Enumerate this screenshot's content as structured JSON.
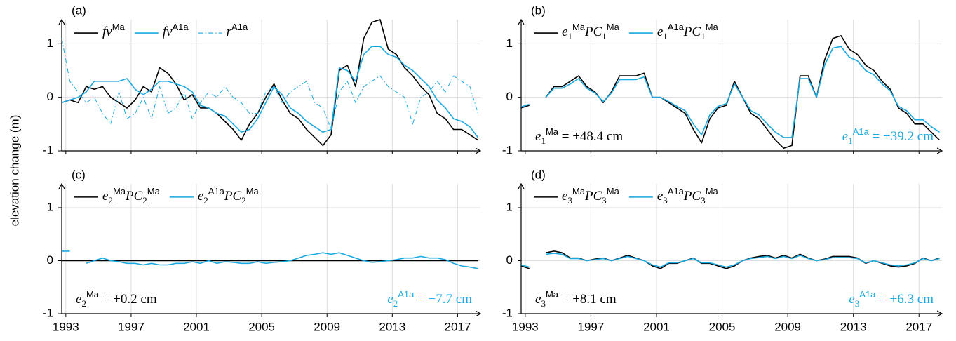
{
  "ylabel": "elevation change (m)",
  "chart_data": [
    {
      "type": "line",
      "title": "(a)",
      "xlim": [
        1992.75,
        2018.4
      ],
      "ylim": [
        -1,
        1.45
      ],
      "xticks": [
        1993,
        1997,
        2001,
        2005,
        2009,
        2013,
        2017
      ],
      "xtick_labels": false,
      "yticks": [
        -1,
        0,
        1
      ],
      "grid": true,
      "legend": "top-left",
      "x": [
        1992.75,
        1993.25,
        1993.75,
        1994.25,
        1994.75,
        1995.25,
        1995.75,
        1996.25,
        1996.75,
        1997.25,
        1997.75,
        1998.25,
        1998.75,
        1999.25,
        1999.75,
        2000.25,
        2000.75,
        2001.25,
        2001.75,
        2002.25,
        2002.75,
        2003.25,
        2003.75,
        2004.25,
        2004.75,
        2005.25,
        2005.75,
        2006.25,
        2006.75,
        2007.25,
        2007.75,
        2008.25,
        2008.75,
        2009.25,
        2009.75,
        2010.25,
        2010.75,
        2011.25,
        2011.75,
        2012.25,
        2012.75,
        2013.25,
        2013.75,
        2014.25,
        2014.75,
        2015.25,
        2015.75,
        2016.25,
        2016.75,
        2017.25,
        2017.75,
        2018.25
      ],
      "series": [
        {
          "name": "fv^{Ma}",
          "color": "#000000",
          "dash": "solid",
          "values": [
            -0.1,
            -0.05,
            -0.1,
            0.2,
            0.15,
            0.2,
            0.0,
            -0.1,
            -0.2,
            -0.05,
            0.2,
            0.1,
            0.55,
            0.45,
            0.25,
            -0.05,
            0.05,
            -0.2,
            -0.2,
            -0.3,
            -0.45,
            -0.6,
            -0.8,
            -0.5,
            -0.3,
            0.0,
            0.25,
            -0.05,
            -0.3,
            -0.4,
            -0.6,
            -0.75,
            -0.9,
            -0.7,
            0.5,
            0.6,
            0.2,
            1.1,
            1.4,
            1.45,
            0.9,
            0.8,
            0.55,
            0.4,
            0.2,
            0.05,
            -0.3,
            -0.4,
            -0.6,
            -0.6,
            -0.7,
            -0.8
          ]
        },
        {
          "name": "fv^{A1a}",
          "color": "#1ba9e1",
          "dash": "solid",
          "values": [
            -0.1,
            -0.05,
            0.0,
            0.1,
            0.3,
            0.3,
            0.3,
            0.3,
            0.35,
            0.15,
            0.05,
            0.15,
            0.3,
            0.3,
            0.25,
            0.2,
            0.1,
            -0.15,
            -0.2,
            -0.3,
            -0.35,
            -0.5,
            -0.65,
            -0.6,
            -0.4,
            -0.1,
            0.2,
            0.05,
            -0.2,
            -0.3,
            -0.45,
            -0.55,
            -0.65,
            -0.6,
            0.55,
            0.5,
            0.3,
            0.8,
            0.95,
            0.95,
            0.8,
            0.75,
            0.6,
            0.5,
            0.35,
            0.2,
            -0.05,
            -0.2,
            -0.4,
            -0.45,
            -0.55,
            -0.75
          ]
        },
        {
          "name": "r^{A1a}",
          "color": "#1ba9e1",
          "dash": "dashdot",
          "values": [
            1.1,
            0.3,
            0.1,
            -0.1,
            0.0,
            -0.3,
            -0.5,
            0.1,
            -0.4,
            -0.3,
            0.0,
            -0.4,
            0.2,
            -0.3,
            -0.2,
            0.1,
            -0.4,
            -0.1,
            0.1,
            0.0,
            0.2,
            0.0,
            -0.1,
            -0.3,
            -0.3,
            0.1,
            0.2,
            -0.1,
            0.1,
            0.2,
            0.3,
            -0.1,
            -0.2,
            -0.6,
            0.1,
            0.3,
            -0.1,
            0.2,
            0.3,
            0.4,
            0.2,
            0.1,
            0.0,
            -0.5,
            0.0,
            0.1,
            0.3,
            0.1,
            0.4,
            0.3,
            0.2,
            -0.3
          ]
        }
      ]
    },
    {
      "type": "line",
      "title": "(b)",
      "xlim": [
        1992.75,
        2018.4
      ],
      "ylim": [
        -1,
        1.45
      ],
      "xticks": [
        1993,
        1997,
        2001,
        2005,
        2009,
        2013,
        2017
      ],
      "xtick_labels": false,
      "yticks": [
        -1,
        0,
        1
      ],
      "grid": true,
      "legend": "top-left",
      "x": [
        1992.75,
        1993.25,
        1993.75,
        1994.25,
        1994.75,
        1995.25,
        1995.75,
        1996.25,
        1996.75,
        1997.25,
        1997.75,
        1998.25,
        1998.75,
        1999.25,
        1999.75,
        2000.25,
        2000.75,
        2001.25,
        2001.75,
        2002.25,
        2002.75,
        2003.25,
        2003.75,
        2004.25,
        2004.75,
        2005.25,
        2005.75,
        2006.25,
        2006.75,
        2007.25,
        2007.75,
        2008.25,
        2008.75,
        2009.25,
        2009.75,
        2010.25,
        2010.75,
        2011.25,
        2011.75,
        2012.25,
        2012.75,
        2013.25,
        2013.75,
        2014.25,
        2014.75,
        2015.25,
        2015.75,
        2016.25,
        2016.75,
        2017.25,
        2017.75,
        2018.25
      ],
      "series": [
        {
          "name": "e_1^{Ma}PC_1^{Ma}",
          "color": "#000000",
          "dash": "solid",
          "values": [
            -0.2,
            -0.15,
            null,
            0.0,
            0.2,
            0.2,
            0.3,
            0.4,
            0.2,
            0.1,
            -0.1,
            0.1,
            0.4,
            0.4,
            0.4,
            0.45,
            0.0,
            0.0,
            -0.1,
            -0.2,
            -0.3,
            -0.6,
            -0.85,
            -0.4,
            -0.2,
            -0.15,
            0.3,
            0.0,
            -0.3,
            -0.4,
            -0.6,
            -0.8,
            -0.95,
            -0.9,
            0.4,
            0.4,
            0.0,
            0.7,
            1.1,
            1.15,
            0.9,
            0.8,
            0.6,
            0.5,
            0.3,
            0.15,
            -0.2,
            -0.3,
            -0.5,
            -0.5,
            -0.65,
            -0.8
          ]
        },
        {
          "name": "e_1^{A1a}PC_1^{Ma}",
          "color": "#1ba9e1",
          "dash": "solid",
          "values": [
            -0.18,
            -0.13,
            null,
            0.0,
            0.17,
            0.17,
            0.25,
            0.35,
            0.17,
            0.08,
            -0.08,
            0.08,
            0.33,
            0.33,
            0.33,
            0.38,
            0.0,
            0.0,
            -0.08,
            -0.17,
            -0.25,
            -0.5,
            -0.7,
            -0.33,
            -0.17,
            -0.12,
            0.25,
            0.0,
            -0.25,
            -0.33,
            -0.5,
            -0.65,
            -0.75,
            -0.75,
            0.35,
            0.35,
            0.0,
            0.6,
            0.92,
            0.95,
            0.75,
            0.68,
            0.5,
            0.42,
            0.25,
            0.12,
            -0.17,
            -0.25,
            -0.42,
            -0.42,
            -0.55,
            -0.65
          ]
        }
      ],
      "annotations": [
        {
          "text": "e_1^{Ma} = +48.4 cm",
          "color": "#000000",
          "position": "bottom-left"
        },
        {
          "text": "e_1^{A1a} = +39.2 cm",
          "color": "#1ba9e1",
          "position": "bottom-right"
        }
      ]
    },
    {
      "type": "line",
      "title": "(c)",
      "xlim": [
        1992.75,
        2018.4
      ],
      "ylim": [
        -1,
        1.45
      ],
      "xticks": [
        1993,
        1997,
        2001,
        2005,
        2009,
        2013,
        2017
      ],
      "xtick_labels": true,
      "yticks": [
        -1,
        0,
        1
      ],
      "grid": true,
      "legend": "top-left",
      "x": [
        1992.75,
        1993.25,
        1993.75,
        1994.25,
        1994.75,
        1995.25,
        1995.75,
        1996.25,
        1996.75,
        1997.25,
        1997.75,
        1998.25,
        1998.75,
        1999.25,
        1999.75,
        2000.25,
        2000.75,
        2001.25,
        2001.75,
        2002.25,
        2002.75,
        2003.25,
        2003.75,
        2004.25,
        2004.75,
        2005.25,
        2005.75,
        2006.25,
        2006.75,
        2007.25,
        2007.75,
        2008.25,
        2008.75,
        2009.25,
        2009.75,
        2010.25,
        2010.75,
        2011.25,
        2011.75,
        2012.25,
        2012.75,
        2013.25,
        2013.75,
        2014.25,
        2014.75,
        2015.25,
        2015.75,
        2016.25,
        2016.75,
        2017.25,
        2017.75,
        2018.25
      ],
      "series": [
        {
          "name": "e_2^{Ma}PC_2^{Ma}",
          "color": "#000000",
          "dash": "solid",
          "values": [
            0,
            0,
            0,
            0,
            0,
            0,
            0,
            0,
            0,
            0,
            0,
            0,
            0,
            0,
            0,
            0,
            0,
            0,
            0,
            0,
            0,
            0,
            0,
            0,
            0,
            0,
            0,
            0,
            0,
            0,
            0,
            0,
            0,
            0,
            0,
            0,
            0,
            0,
            0,
            0,
            0,
            0,
            0,
            0,
            0,
            0,
            0,
            0,
            0,
            0,
            0,
            0
          ]
        },
        {
          "name": "e_2^{A1a}PC_2^{Ma}",
          "color": "#1ba9e1",
          "dash": "solid",
          "values": [
            0.18,
            0.18,
            null,
            -0.05,
            0.0,
            0.05,
            0.0,
            -0.02,
            -0.05,
            -0.05,
            -0.08,
            -0.05,
            -0.08,
            -0.08,
            -0.05,
            -0.05,
            -0.02,
            -0.05,
            0.0,
            -0.05,
            -0.02,
            -0.03,
            -0.05,
            -0.05,
            -0.02,
            -0.05,
            -0.03,
            -0.02,
            0.0,
            0.05,
            0.1,
            0.12,
            0.15,
            0.12,
            0.15,
            0.1,
            0.05,
            0.0,
            -0.03,
            -0.02,
            0.0,
            0.02,
            0.05,
            0.05,
            0.08,
            0.05,
            0.05,
            0.02,
            -0.05,
            -0.1,
            -0.12,
            -0.15
          ]
        }
      ],
      "annotations": [
        {
          "text": "e_2^{Ma} = +0.2 cm",
          "color": "#000000",
          "position": "bottom-left"
        },
        {
          "text": "e_2^{A1a} = −7.7 cm",
          "color": "#1ba9e1",
          "position": "bottom-right"
        }
      ]
    },
    {
      "type": "line",
      "title": "(d)",
      "xlim": [
        1992.75,
        2018.4
      ],
      "ylim": [
        -1,
        1.45
      ],
      "xticks": [
        1993,
        1997,
        2001,
        2005,
        2009,
        2013,
        2017
      ],
      "xtick_labels": true,
      "yticks": [
        -1,
        0,
        1
      ],
      "grid": true,
      "legend": "top-left",
      "x": [
        1992.75,
        1993.25,
        1993.75,
        1994.25,
        1994.75,
        1995.25,
        1995.75,
        1996.25,
        1996.75,
        1997.25,
        1997.75,
        1998.25,
        1998.75,
        1999.25,
        1999.75,
        2000.25,
        2000.75,
        2001.25,
        2001.75,
        2002.25,
        2002.75,
        2003.25,
        2003.75,
        2004.25,
        2004.75,
        2005.25,
        2005.75,
        2006.25,
        2006.75,
        2007.25,
        2007.75,
        2008.25,
        2008.75,
        2009.25,
        2009.75,
        2010.25,
        2010.75,
        2011.25,
        2011.75,
        2012.25,
        2012.75,
        2013.25,
        2013.75,
        2014.25,
        2014.75,
        2015.25,
        2015.75,
        2016.25,
        2016.75,
        2017.25,
        2017.75,
        2018.25
      ],
      "series": [
        {
          "name": "e_3^{Ma}PC_3^{Ma}",
          "color": "#000000",
          "dash": "solid",
          "values": [
            -0.1,
            -0.15,
            null,
            0.15,
            0.18,
            0.15,
            0.05,
            0.05,
            0.0,
            0.03,
            0.05,
            0.0,
            0.05,
            0.1,
            0.05,
            0.0,
            -0.1,
            -0.15,
            -0.05,
            -0.05,
            0.0,
            0.05,
            -0.05,
            -0.05,
            -0.1,
            -0.15,
            -0.1,
            0.0,
            0.05,
            0.08,
            0.1,
            0.05,
            0.1,
            0.05,
            0.12,
            0.05,
            0.0,
            0.03,
            0.08,
            0.08,
            0.08,
            0.05,
            -0.05,
            0.0,
            -0.05,
            -0.1,
            -0.12,
            -0.1,
            -0.05,
            0.05,
            0.0,
            0.05
          ]
        },
        {
          "name": "e_3^{A1a}PC_3^{Ma}",
          "color": "#1ba9e1",
          "dash": "solid",
          "values": [
            -0.08,
            -0.12,
            null,
            0.12,
            0.14,
            0.12,
            0.04,
            0.04,
            0.0,
            0.02,
            0.04,
            0.0,
            0.04,
            0.08,
            0.04,
            0.0,
            -0.08,
            -0.12,
            -0.04,
            -0.04,
            0.0,
            0.04,
            -0.04,
            -0.04,
            -0.08,
            -0.12,
            -0.08,
            0.0,
            0.04,
            0.06,
            0.08,
            0.04,
            0.08,
            0.04,
            0.1,
            0.04,
            0.0,
            0.02,
            0.06,
            0.06,
            0.06,
            0.04,
            -0.04,
            0.0,
            -0.04,
            -0.08,
            -0.1,
            -0.08,
            -0.04,
            0.04,
            0.0,
            0.04
          ]
        }
      ],
      "annotations": [
        {
          "text": "e_3^{Ma} = +8.1 cm",
          "color": "#000000",
          "position": "bottom-left"
        },
        {
          "text": "e_3^{A1a} = +6.3 cm",
          "color": "#1ba9e1",
          "position": "bottom-right"
        }
      ]
    }
  ]
}
